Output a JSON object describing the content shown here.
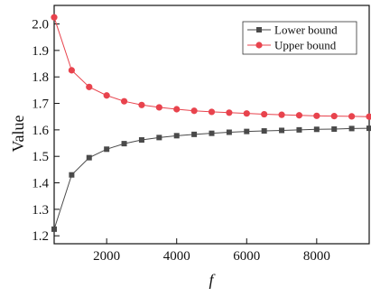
{
  "chart_data": {
    "type": "line",
    "title": "",
    "xlabel": "f",
    "ylabel": "Value",
    "xlim": [
      500,
      9500
    ],
    "ylim": [
      1.17,
      2.07
    ],
    "x_ticks": [
      2000,
      4000,
      6000,
      8000
    ],
    "y_ticks": [
      1.2,
      1.3,
      1.4,
      1.5,
      1.6,
      1.7,
      1.8,
      1.9,
      2.0
    ],
    "x_tick_labels": [
      "2000",
      "4000",
      "6000",
      "8000"
    ],
    "y_tick_labels": [
      "1.2",
      "1.3",
      "1.4",
      "1.5",
      "1.6",
      "1.7",
      "1.8",
      "1.9",
      "2.0"
    ],
    "grid": false,
    "legend_position": "top-right",
    "x": [
      500,
      1000,
      1500,
      2000,
      2500,
      3000,
      3500,
      4000,
      4500,
      5000,
      5500,
      6000,
      6500,
      7000,
      7500,
      8000,
      8500,
      9000,
      9500
    ],
    "series": [
      {
        "name": "Lower bound",
        "color": "#4a4a4a",
        "marker": "square",
        "values": [
          1.225,
          1.43,
          1.495,
          1.527,
          1.548,
          1.562,
          1.571,
          1.578,
          1.583,
          1.587,
          1.591,
          1.594,
          1.596,
          1.598,
          1.6,
          1.602,
          1.603,
          1.605,
          1.606
        ]
      },
      {
        "name": "Upper bound",
        "color": "#e8434d",
        "marker": "circle",
        "values": [
          2.025,
          1.825,
          1.762,
          1.73,
          1.708,
          1.694,
          1.685,
          1.678,
          1.672,
          1.668,
          1.665,
          1.662,
          1.659,
          1.657,
          1.655,
          1.653,
          1.652,
          1.651,
          1.65
        ]
      }
    ]
  }
}
